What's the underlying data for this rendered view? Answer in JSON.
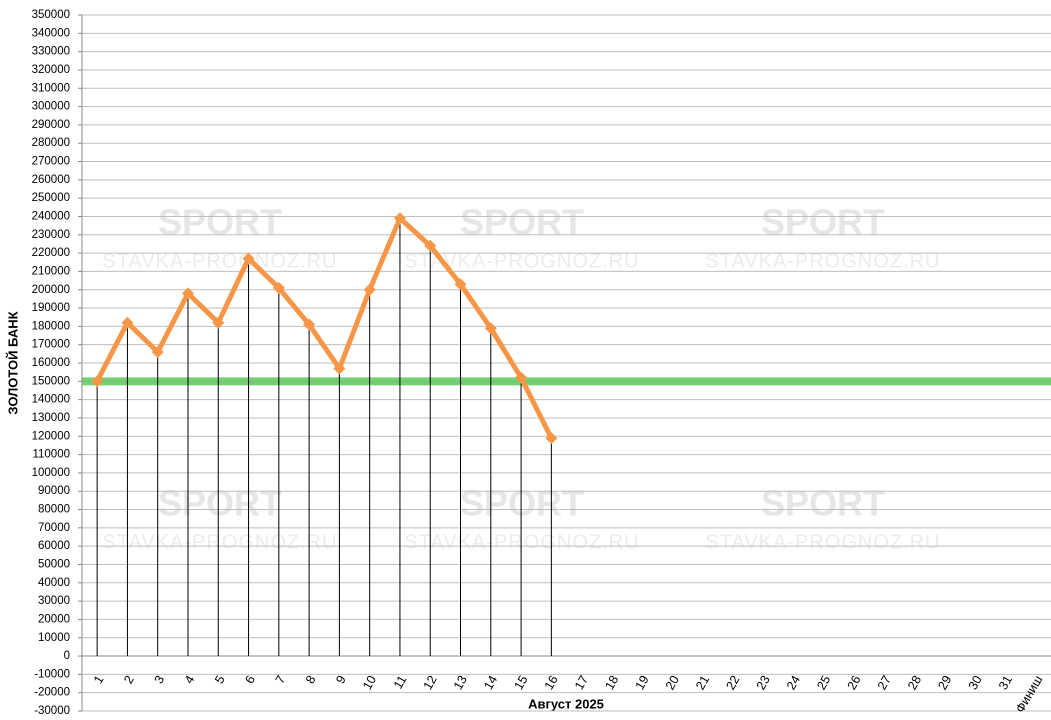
{
  "chart_data": {
    "type": "line",
    "x_label": "Август 2025",
    "y_label": "ЗОЛОТОЙ БАНК",
    "watermarks": [
      "SPORT",
      "STAVKA-PROGNOZ.RU"
    ],
    "categories": [
      "1",
      "2",
      "3",
      "4",
      "5",
      "6",
      "7",
      "8",
      "9",
      "10",
      "11",
      "12",
      "13",
      "14",
      "15",
      "16",
      "17",
      "18",
      "19",
      "20",
      "21",
      "22",
      "23",
      "24",
      "25",
      "26",
      "27",
      "28",
      "29",
      "30",
      "31",
      "Финиш"
    ],
    "series": [
      {
        "color": "#f79646",
        "values": [
          150000,
          182000,
          166000,
          198000,
          182000,
          217000,
          201000,
          181000,
          157000,
          200000,
          239000,
          224000,
          203000,
          179000,
          152000,
          119000,
          null,
          null,
          null,
          null,
          null,
          null,
          null,
          null,
          null,
          null,
          null,
          null,
          null,
          null,
          null,
          null
        ]
      }
    ],
    "reference_line": {
      "value": 150000,
      "color": "#5cc85c"
    },
    "drop_lines": true,
    "grid": true,
    "ylim": [
      -30000,
      350000
    ],
    "yticks": [
      -30000,
      -20000,
      -10000,
      0,
      10000,
      20000,
      30000,
      40000,
      50000,
      60000,
      70000,
      80000,
      90000,
      100000,
      110000,
      120000,
      130000,
      140000,
      150000,
      160000,
      170000,
      180000,
      190000,
      200000,
      210000,
      220000,
      230000,
      240000,
      250000,
      260000,
      270000,
      280000,
      290000,
      300000,
      310000,
      320000,
      330000,
      340000,
      350000
    ]
  }
}
